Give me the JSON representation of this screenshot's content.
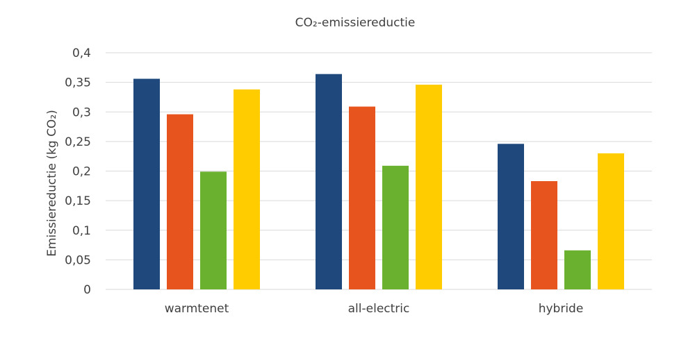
{
  "chart_data": {
    "type": "bar",
    "title": "CO₂-emissiereductie",
    "ylabel": "Emissiereductie (kg CO₂)",
    "xlabel": "",
    "categories": [
      "warmtenet",
      "all-electric",
      "hybride"
    ],
    "series": [
      {
        "values": [
          0.356,
          0.364,
          0.246
        ],
        "color": "#1f497d"
      },
      {
        "values": [
          0.296,
          0.309,
          0.183
        ],
        "color": "#e8541e"
      },
      {
        "values": [
          0.199,
          0.209,
          0.066
        ],
        "color": "#6bb130"
      },
      {
        "values": [
          0.338,
          0.346,
          0.23
        ],
        "color": "#ffcc00"
      }
    ],
    "ylim": [
      0,
      0.4
    ],
    "yticks": [
      0,
      0.05,
      0.1,
      0.15,
      0.2,
      0.25,
      0.3,
      0.35,
      0.4
    ],
    "ytick_labels": [
      "0",
      "0,05",
      "0,1",
      "0,15",
      "0,2",
      "0,25",
      "0,3",
      "0,35",
      "0,4"
    ],
    "grid": true,
    "legend": "none"
  }
}
